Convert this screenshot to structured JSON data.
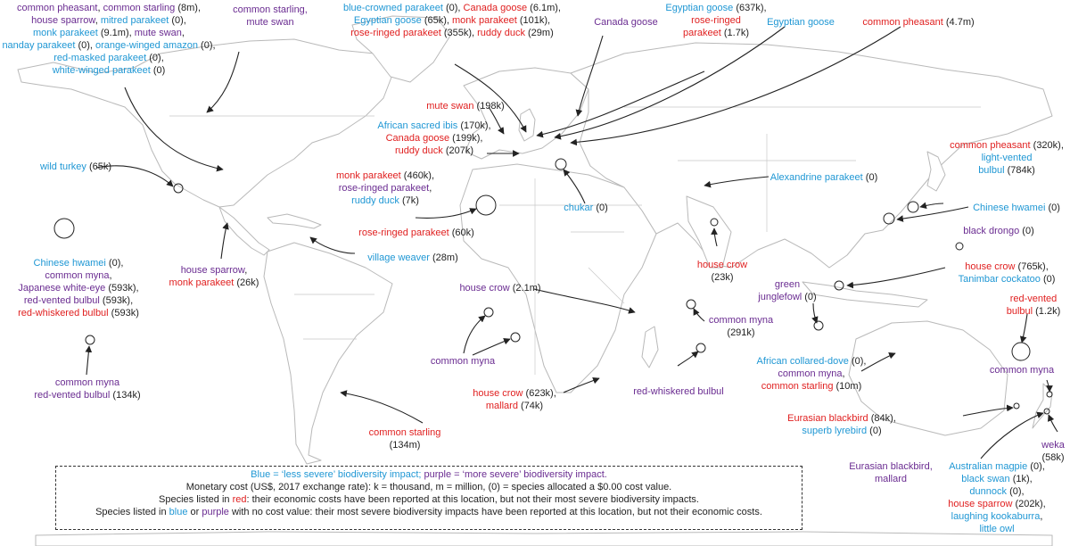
{
  "colors": {
    "blue": "#1f97d4",
    "red": "#e02020",
    "purple": "#6a2c91",
    "black": "#222222",
    "land_stroke": "#b9b9b9",
    "arrow": "#222222"
  },
  "icons": [
    "arrow",
    "circle-marker"
  ],
  "labels": [
    {
      "id": "nw-cluster",
      "lines": [
        [
          {
            "t": "common pheasant",
            "c": "p"
          },
          {
            "t": ", ",
            "c": "k"
          },
          {
            "t": "common starling",
            "c": "p"
          },
          {
            "t": " (8m),",
            "c": "k"
          }
        ],
        [
          {
            "t": "house sparrow",
            "c": "p"
          },
          {
            "t": ", ",
            "c": "k"
          },
          {
            "t": "mitred parakeet",
            "c": "b"
          },
          {
            "t": " (0),",
            "c": "k"
          }
        ],
        [
          {
            "t": "monk parakeet",
            "c": "b"
          },
          {
            "t": " (9.1m), ",
            "c": "k"
          },
          {
            "t": "mute swan",
            "c": "p"
          },
          {
            "t": ",",
            "c": "k"
          }
        ],
        [
          {
            "t": "nanday parakeet",
            "c": "b"
          },
          {
            "t": " (0), ",
            "c": "k"
          },
          {
            "t": "orange-winged amazon",
            "c": "b"
          },
          {
            "t": " (0),",
            "c": "k"
          }
        ],
        [
          {
            "t": "red-masked parakeet",
            "c": "b"
          },
          {
            "t": " (0),",
            "c": "k"
          }
        ],
        [
          {
            "t": "white-winged parakeet",
            "c": "b"
          },
          {
            "t": " (0)",
            "c": "k"
          }
        ]
      ]
    },
    {
      "id": "ak-starling",
      "lines": [
        [
          {
            "t": "common starling,",
            "c": "p"
          }
        ],
        [
          {
            "t": "mute swan",
            "c": "p"
          }
        ]
      ]
    },
    {
      "id": "uk-cluster",
      "lines": [
        [
          {
            "t": "blue-crowned parakeet",
            "c": "b"
          },
          {
            "t": " (0), ",
            "c": "k"
          },
          {
            "t": "Canada goose",
            "c": "r"
          },
          {
            "t": " (6.1m),",
            "c": "k"
          }
        ],
        [
          {
            "t": "Egyptian goose",
            "c": "b"
          },
          {
            "t": " (65k), ",
            "c": "k"
          },
          {
            "t": "monk parakeet",
            "c": "r"
          },
          {
            "t": " (101k),",
            "c": "k"
          }
        ],
        [
          {
            "t": "rose-ringed parakeet",
            "c": "r"
          },
          {
            "t": " (355k), ",
            "c": "k"
          },
          {
            "t": "ruddy duck",
            "c": "r"
          },
          {
            "t": " (29m)",
            "c": "k"
          }
        ]
      ]
    },
    {
      "id": "canada-goose-n",
      "lines": [
        [
          {
            "t": "Canada goose",
            "c": "p"
          }
        ]
      ]
    },
    {
      "id": "egyptian-goose-1",
      "lines": [
        [
          {
            "t": "Egyptian goose",
            "c": "b"
          },
          {
            "t": " (637k),",
            "c": "k"
          }
        ],
        [
          {
            "t": "rose-ringed",
            "c": "r"
          }
        ],
        [
          {
            "t": "parakeet",
            "c": "r"
          },
          {
            "t": " (1.7k)",
            "c": "k"
          }
        ]
      ]
    },
    {
      "id": "egyptian-goose-2",
      "lines": [
        [
          {
            "t": "Egyptian goose",
            "c": "b"
          }
        ]
      ]
    },
    {
      "id": "pheasant-top",
      "lines": [
        [
          {
            "t": "common pheasant",
            "c": "r"
          },
          {
            "t": " (4.7m)",
            "c": "k"
          }
        ]
      ]
    },
    {
      "id": "mute-swan",
      "lines": [
        [
          {
            "t": "mute swan",
            "c": "r"
          },
          {
            "t": " (198k)",
            "c": "k"
          }
        ]
      ]
    },
    {
      "id": "ibis-cluster",
      "lines": [
        [
          {
            "t": "African sacred ibis",
            "c": "b"
          },
          {
            "t": " (170k),",
            "c": "k"
          }
        ],
        [
          {
            "t": "Canada goose",
            "c": "r"
          },
          {
            "t": " (199k),",
            "c": "k"
          }
        ],
        [
          {
            "t": "ruddy duck",
            "c": "r"
          },
          {
            "t": " (207k)",
            "c": "k"
          }
        ]
      ]
    },
    {
      "id": "wild-turkey",
      "lines": [
        [
          {
            "t": "wild turkey",
            "c": "b"
          },
          {
            "t": " (65k)",
            "c": "k"
          }
        ]
      ]
    },
    {
      "id": "monk-iberia",
      "lines": [
        [
          {
            "t": "monk parakeet",
            "c": "r"
          },
          {
            "t": " (460k),",
            "c": "k"
          }
        ],
        [
          {
            "t": "rose-ringed parakeet",
            "c": "p"
          },
          {
            "t": ",",
            "c": "k"
          }
        ],
        [
          {
            "t": "ruddy duck",
            "c": "b"
          },
          {
            "t": " (7k)",
            "c": "k"
          }
        ]
      ]
    },
    {
      "id": "chukar",
      "lines": [
        [
          {
            "t": "chukar",
            "c": "b"
          },
          {
            "t": " (0)",
            "c": "k"
          }
        ]
      ]
    },
    {
      "id": "alexandrine",
      "lines": [
        [
          {
            "t": "Alexandrine parakeet",
            "c": "b"
          },
          {
            "t": " (0)",
            "c": "k"
          }
        ]
      ]
    },
    {
      "id": "pheasant-japan",
      "lines": [
        [
          {
            "t": "common pheasant",
            "c": "r"
          },
          {
            "t": " (320k),",
            "c": "k"
          }
        ],
        [
          {
            "t": "light-vented",
            "c": "b"
          }
        ],
        [
          {
            "t": "bulbul",
            "c": "b"
          },
          {
            "t": " (784k)",
            "c": "k"
          }
        ]
      ]
    },
    {
      "id": "hwamei-tw",
      "lines": [
        [
          {
            "t": "Chinese hwamei",
            "c": "b"
          },
          {
            "t": " (0)",
            "c": "k"
          }
        ]
      ]
    },
    {
      "id": "hawaii",
      "lines": [
        [
          {
            "t": "Chinese hwamei",
            "c": "b"
          },
          {
            "t": " (0),",
            "c": "k"
          }
        ],
        [
          {
            "t": "common myna",
            "c": "p"
          },
          {
            "t": ",",
            "c": "k"
          }
        ],
        [
          {
            "t": "Japanese white-eye",
            "c": "p"
          },
          {
            "t": " (593k),",
            "c": "k"
          }
        ],
        [
          {
            "t": "red-vented bulbul",
            "c": "p"
          },
          {
            "t": " (593k),",
            "c": "k"
          }
        ],
        [
          {
            "t": "red-whiskered bulbul",
            "c": "r"
          },
          {
            "t": " (593k)",
            "c": "k"
          }
        ]
      ]
    },
    {
      "id": "sparrow-mx",
      "lines": [
        [
          {
            "t": "house sparrow",
            "c": "p"
          },
          {
            "t": ",",
            "c": "k"
          }
        ],
        [
          {
            "t": "monk parakeet",
            "c": "r"
          },
          {
            "t": " (26k)",
            "c": "k"
          }
        ]
      ]
    },
    {
      "id": "rose-ringed-60k",
      "lines": [
        [
          {
            "t": "rose-ringed parakeet",
            "c": "r"
          },
          {
            "t": " (60k)",
            "c": "k"
          }
        ]
      ]
    },
    {
      "id": "village-weaver",
      "lines": [
        [
          {
            "t": "village weaver",
            "c": "b"
          },
          {
            "t": " (28m)",
            "c": "k"
          }
        ]
      ]
    },
    {
      "id": "house-crow-23k",
      "lines": [
        [
          {
            "t": "house crow",
            "c": "r"
          }
        ],
        [
          {
            "t": "(23k)",
            "c": "k"
          }
        ]
      ]
    },
    {
      "id": "black-drongo",
      "lines": [
        [
          {
            "t": "black drongo",
            "c": "p"
          },
          {
            "t": " (0)",
            "c": "k"
          }
        ]
      ]
    },
    {
      "id": "house-crow-sg",
      "lines": [
        [
          {
            "t": "house crow",
            "c": "r"
          },
          {
            "t": " (765k),",
            "c": "k"
          }
        ],
        [
          {
            "t": "Tanimbar cockatoo",
            "c": "b"
          },
          {
            "t": " (0)",
            "c": "k"
          }
        ]
      ]
    },
    {
      "id": "green-junglefowl",
      "lines": [
        [
          {
            "t": "green",
            "c": "p"
          }
        ],
        [
          {
            "t": "junglefowl",
            "c": "p"
          },
          {
            "t": " (0)",
            "c": "k"
          }
        ]
      ]
    },
    {
      "id": "house-crow-2m",
      "lines": [
        [
          {
            "t": "house crow",
            "c": "p"
          },
          {
            "t": " (2.1m)",
            "c": "k"
          }
        ]
      ]
    },
    {
      "id": "myna-291k",
      "lines": [
        [
          {
            "t": "common myna",
            "c": "p"
          }
        ],
        [
          {
            "t": "(291k)",
            "c": "k"
          }
        ]
      ]
    },
    {
      "id": "red-vented-fiji",
      "lines": [
        [
          {
            "t": "red-vented",
            "c": "r"
          }
        ],
        [
          {
            "t": "bulbul",
            "c": "r"
          },
          {
            "t": " (1.2k)",
            "c": "k"
          }
        ]
      ]
    },
    {
      "id": "myna-pacific",
      "lines": [
        [
          {
            "t": "common myna",
            "c": "p"
          }
        ],
        [
          {
            "t": "red-vented bulbul",
            "c": "p"
          },
          {
            "t": " (134k)",
            "c": "k"
          }
        ]
      ]
    },
    {
      "id": "myna-atlantic",
      "lines": [
        [
          {
            "t": "common myna",
            "c": "p"
          }
        ]
      ]
    },
    {
      "id": "collared-dove",
      "lines": [
        [
          {
            "t": "African collared-dove",
            "c": "b"
          },
          {
            "t": " (0),",
            "c": "k"
          }
        ],
        [
          {
            "t": "common myna",
            "c": "p"
          },
          {
            "t": ",",
            "c": "k"
          }
        ],
        [
          {
            "t": "common starling",
            "c": "r"
          },
          {
            "t": " (10m)",
            "c": "k"
          }
        ]
      ]
    },
    {
      "id": "myna-nz",
      "lines": [
        [
          {
            "t": "common myna",
            "c": "p"
          }
        ]
      ]
    },
    {
      "id": "house-crow-za",
      "lines": [
        [
          {
            "t": "house crow",
            "c": "r"
          },
          {
            "t": " (623k),",
            "c": "k"
          }
        ],
        [
          {
            "t": "mallard",
            "c": "r"
          },
          {
            "t": " (74k)",
            "c": "k"
          }
        ]
      ]
    },
    {
      "id": "red-whiskered-mu",
      "lines": [
        [
          {
            "t": "red-whiskered bulbul",
            "c": "p"
          }
        ]
      ]
    },
    {
      "id": "starling-ar",
      "lines": [
        [
          {
            "t": "common starling",
            "c": "r"
          }
        ],
        [
          {
            "t": "(134m)",
            "c": "k"
          }
        ]
      ]
    },
    {
      "id": "blackbird-au",
      "lines": [
        [
          {
            "t": "Eurasian blackbird",
            "c": "r"
          },
          {
            "t": " (84k),",
            "c": "k"
          }
        ],
        [
          {
            "t": "superb lyrebird",
            "c": "b"
          },
          {
            "t": " (0)",
            "c": "k"
          }
        ]
      ]
    },
    {
      "id": "weka",
      "lines": [
        [
          {
            "t": "weka",
            "c": "p"
          }
        ],
        [
          {
            "t": "(58k)",
            "c": "k"
          }
        ]
      ]
    },
    {
      "id": "blackbird-mallard",
      "lines": [
        [
          {
            "t": "Eurasian blackbird,",
            "c": "p"
          }
        ],
        [
          {
            "t": "mallard",
            "c": "p"
          }
        ]
      ]
    },
    {
      "id": "magpie-cluster",
      "lines": [
        [
          {
            "t": "Australian magpie",
            "c": "b"
          },
          {
            "t": " (0),",
            "c": "k"
          }
        ],
        [
          {
            "t": "black swan",
            "c": "b"
          },
          {
            "t": " (1k),",
            "c": "k"
          }
        ],
        [
          {
            "t": "dunnock",
            "c": "b"
          },
          {
            "t": " (0),",
            "c": "k"
          }
        ],
        [
          {
            "t": "house sparrow",
            "c": "r"
          },
          {
            "t": " (202k),",
            "c": "k"
          }
        ],
        [
          {
            "t": "laughing kookaburra",
            "c": "b"
          },
          {
            "t": ",",
            "c": "k"
          }
        ],
        [
          {
            "t": "little owl",
            "c": "b"
          }
        ]
      ]
    }
  ],
  "legend": {
    "lines": [
      [
        {
          "t": "Blue = ‘less severe’ biodiversity impact; ",
          "c": "b"
        },
        {
          "t": "purple = ‘more severe’ biodiversity impact.",
          "c": "p"
        }
      ],
      [
        {
          "t": "Monetary cost (US$, 2017 exchange rate): k = thousand, m = million, (0) = species allocated a $0.00 cost value.",
          "c": "k"
        }
      ],
      [
        {
          "t": "Species listed in ",
          "c": "k"
        },
        {
          "t": "red",
          "c": "r"
        },
        {
          "t": ": their economic costs have been reported at this location, but not their most severe biodiversity impacts.",
          "c": "k"
        }
      ],
      [
        {
          "t": "Species listed in ",
          "c": "k"
        },
        {
          "t": "blue",
          "c": "b"
        },
        {
          "t": " or ",
          "c": "k"
        },
        {
          "t": "purple",
          "c": "p"
        },
        {
          "t": " with no cost value: their most severe biodiversity impacts have been reported at this location, but not their economic costs.",
          "c": "k"
        }
      ]
    ]
  }
}
